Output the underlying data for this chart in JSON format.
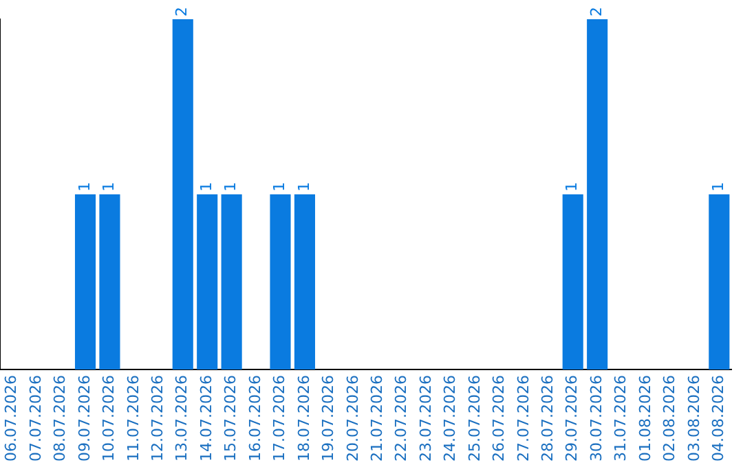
{
  "chart_data": {
    "type": "bar",
    "categories": [
      "06.07.2026",
      "07.07.2026",
      "08.07.2026",
      "09.07.2026",
      "10.07.2026",
      "11.07.2026",
      "12.07.2026",
      "13.07.2026",
      "14.07.2026",
      "15.07.2026",
      "16.07.2026",
      "17.07.2026",
      "18.07.2026",
      "19.07.2026",
      "20.07.2026",
      "21.07.2026",
      "22.07.2026",
      "23.07.2026",
      "24.07.2026",
      "25.07.2026",
      "26.07.2026",
      "27.07.2026",
      "28.07.2026",
      "29.07.2026",
      "30.07.2026",
      "31.07.2026",
      "01.08.2026",
      "02.08.2026",
      "03.08.2026",
      "04.08.2026"
    ],
    "values": [
      0,
      0,
      0,
      1,
      1,
      0,
      0,
      2,
      1,
      1,
      0,
      1,
      1,
      0,
      0,
      0,
      0,
      0,
      0,
      0,
      0,
      0,
      0,
      1,
      2,
      0,
      0,
      0,
      0,
      1
    ],
    "value_labels": [
      null,
      null,
      null,
      "1",
      "1",
      null,
      null,
      "2",
      "1",
      "1",
      null,
      "1",
      "1",
      null,
      null,
      null,
      null,
      null,
      null,
      null,
      null,
      null,
      null,
      "1",
      "2",
      null,
      null,
      null,
      null,
      "1"
    ],
    "color": "#0a7be0",
    "ylim": [
      0,
      2
    ],
    "tick_labels": "x",
    "grid": false,
    "legend": false
  }
}
